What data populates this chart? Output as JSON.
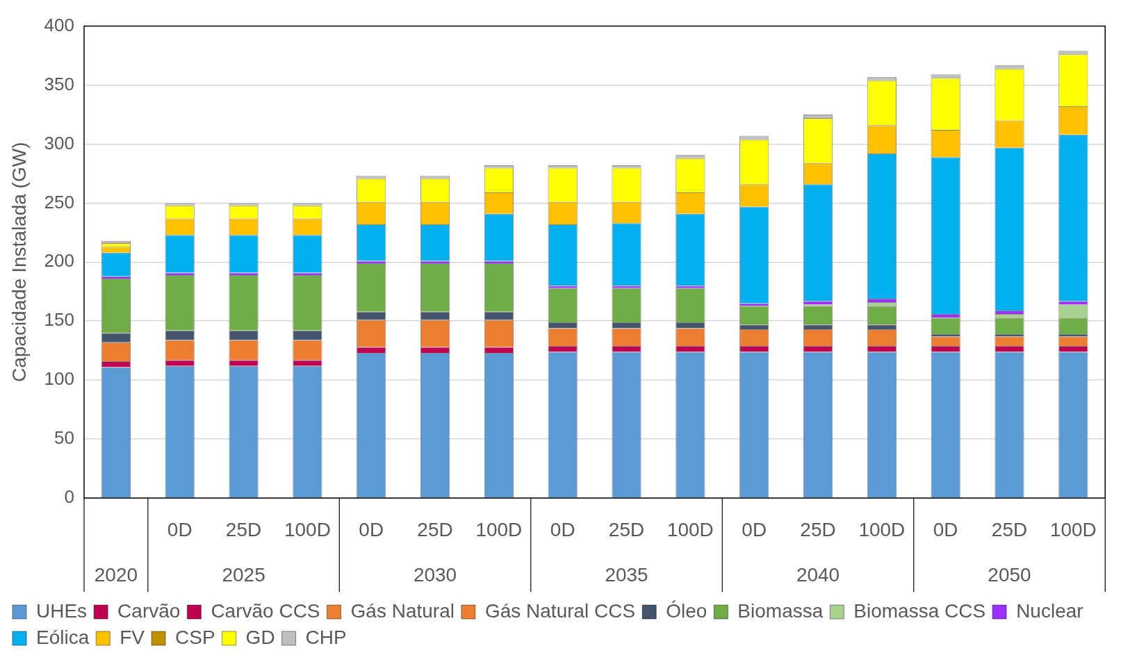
{
  "chart_data": {
    "type": "bar",
    "stacked": true,
    "ylabel": "Capacidade Instalada (GW)",
    "ylim": [
      0,
      400
    ],
    "yticks": [
      0,
      50,
      100,
      150,
      200,
      250,
      300,
      350,
      400
    ],
    "grid": "y",
    "legend": "bottom",
    "categories": [
      null,
      "0D",
      "25D",
      "100D",
      "0D",
      "25D",
      "100D",
      "0D",
      "25D",
      "100D",
      "0D",
      "25D",
      "100D",
      "0D",
      "25D",
      "100D"
    ],
    "annotations": [
      "2020",
      "2025",
      "2030",
      "2035",
      "2040",
      "2050"
    ],
    "series": [
      {
        "name": "UHEs",
        "color": "#5b9bd5",
        "values": [
          111,
          112,
          112,
          112,
          123,
          123,
          123,
          124,
          124,
          124,
          124,
          124,
          124,
          124,
          124,
          124
        ]
      },
      {
        "name": "Carvão",
        "color": "#c00050",
        "values": [
          5,
          5,
          5,
          5,
          5,
          5,
          5,
          5,
          5,
          5,
          5,
          5,
          5,
          5,
          5,
          5
        ]
      },
      {
        "name": "Carvão CCS",
        "color": "#c00050",
        "values": [
          0,
          0,
          0,
          0,
          0,
          0,
          0,
          0,
          0,
          0,
          0,
          0,
          0,
          0,
          0,
          0
        ]
      },
      {
        "name": "Gás Natural",
        "color": "#ed7d31",
        "values": [
          16,
          17,
          17,
          17,
          23,
          23,
          23,
          15,
          15,
          15,
          14,
          14,
          14,
          8,
          8,
          8
        ]
      },
      {
        "name": "Gás Natural CCS",
        "color": "#ed7d31",
        "values": [
          0,
          0,
          0,
          0,
          0,
          0,
          0,
          0,
          0,
          0,
          0,
          0,
          0,
          0,
          0,
          0
        ]
      },
      {
        "name": "Óleo",
        "color": "#44546a",
        "values": [
          8,
          8,
          8,
          8,
          7,
          7,
          7,
          5,
          5,
          5,
          4,
          4,
          4,
          2,
          2,
          2
        ]
      },
      {
        "name": "Biomassa",
        "color": "#70ad47",
        "values": [
          46,
          47,
          47,
          47,
          41,
          41,
          41,
          29,
          29,
          29,
          16,
          16,
          16,
          14,
          14,
          14
        ]
      },
      {
        "name": "Biomassa CCS",
        "color": "#a9d18e",
        "values": [
          0,
          0,
          0,
          0,
          0,
          0,
          0,
          0,
          0,
          0,
          0,
          1,
          3,
          0,
          3,
          11
        ]
      },
      {
        "name": "Nuclear",
        "color": "#9b30ff",
        "values": [
          2,
          2,
          2,
          2,
          2,
          2,
          2,
          2,
          2,
          2,
          2,
          3,
          3,
          3,
          3,
          3
        ]
      },
      {
        "name": "Eólica",
        "color": "#00b0f0",
        "values": [
          20,
          32,
          32,
          32,
          31,
          31,
          40,
          52,
          53,
          61,
          82,
          99,
          123,
          133,
          138,
          141
        ]
      },
      {
        "name": "FV",
        "color": "#ffc000",
        "values": [
          5,
          14,
          14,
          14,
          19,
          19,
          18,
          19,
          18,
          18,
          19,
          18,
          24,
          23,
          23,
          24
        ]
      },
      {
        "name": "CSP",
        "color": "#bf9000",
        "values": [
          0,
          0,
          0,
          0,
          0,
          0,
          0,
          0,
          0,
          0,
          0,
          0,
          0,
          0,
          0,
          0
        ]
      },
      {
        "name": "GD",
        "color": "#ffff00",
        "values": [
          3,
          11,
          11,
          11,
          20,
          20,
          21,
          29,
          29,
          29,
          38,
          38,
          38,
          44,
          44,
          44
        ]
      },
      {
        "name": "CHP",
        "color": "#bfbfbf",
        "values": [
          2,
          2,
          2,
          2,
          2,
          2,
          2,
          2,
          2,
          3,
          3,
          3,
          3,
          3,
          3,
          3
        ]
      }
    ]
  }
}
